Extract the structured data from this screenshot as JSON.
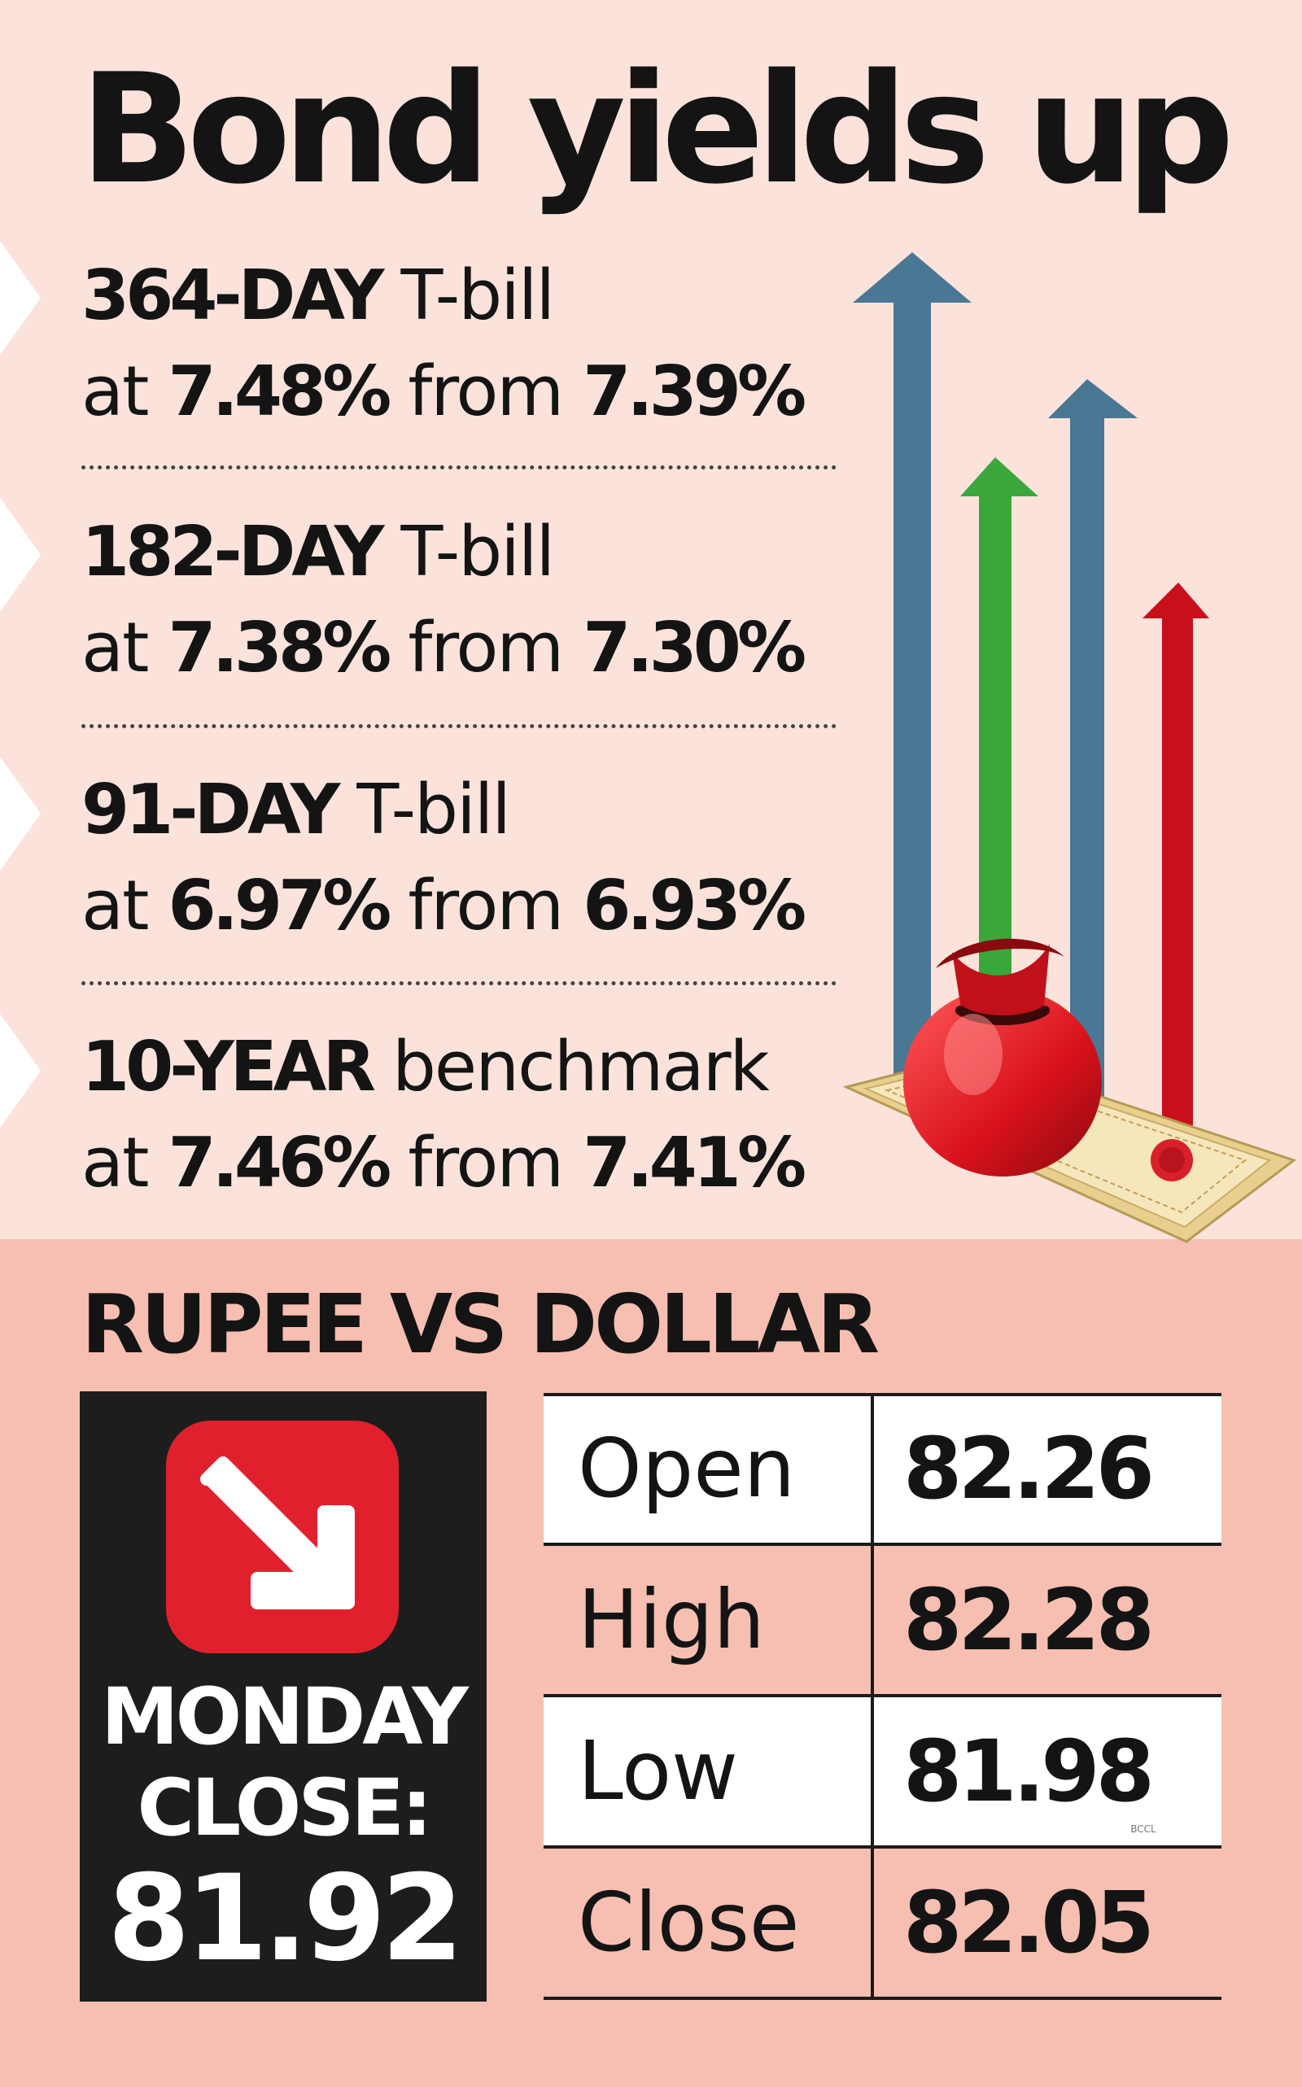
{
  "title": "Bond yields up",
  "bonds": [
    {
      "tenor": "364-DAY",
      "type": "T-bill",
      "at": "at",
      "current": "7.48%",
      "from": "from",
      "previous": "7.39%"
    },
    {
      "tenor": "182-DAY",
      "type": "T-bill",
      "at": "at",
      "current": "7.38%",
      "from": "from",
      "previous": "7.30%"
    },
    {
      "tenor": "91-DAY",
      "type": "T-bill",
      "at": "at",
      "current": "6.97%",
      "from": "from",
      "previous": "6.93%"
    },
    {
      "tenor": "10-YEAR",
      "type": "benchmark",
      "at": "at",
      "current": "7.46%",
      "from": "from",
      "previous": "7.41%"
    }
  ],
  "rupee": {
    "title": "RUPEE VS DOLLAR",
    "close_label_1": "MONDAY",
    "close_label_2": "CLOSE:",
    "close_value": "81.92",
    "table": [
      {
        "label": "Open",
        "value": "82.26"
      },
      {
        "label": "High",
        "value": "82.28"
      },
      {
        "label": "Low",
        "value": "81.98"
      },
      {
        "label": "Close",
        "value": "82.05"
      }
    ]
  },
  "credit": "BCCL",
  "colors": {
    "background_top": "#fbe3dc",
    "background_bottom": "#f6bfb1",
    "arrow_blue": "#4a7793",
    "arrow_green": "#3ba63b",
    "arrow_red": "#c8101c",
    "close_box": "#1d1d1d",
    "down_tile": "#e0212d"
  },
  "icons": [
    "up-arrow-icon",
    "money-bag-icon",
    "certificate-icon",
    "down-arrow-icon"
  ]
}
